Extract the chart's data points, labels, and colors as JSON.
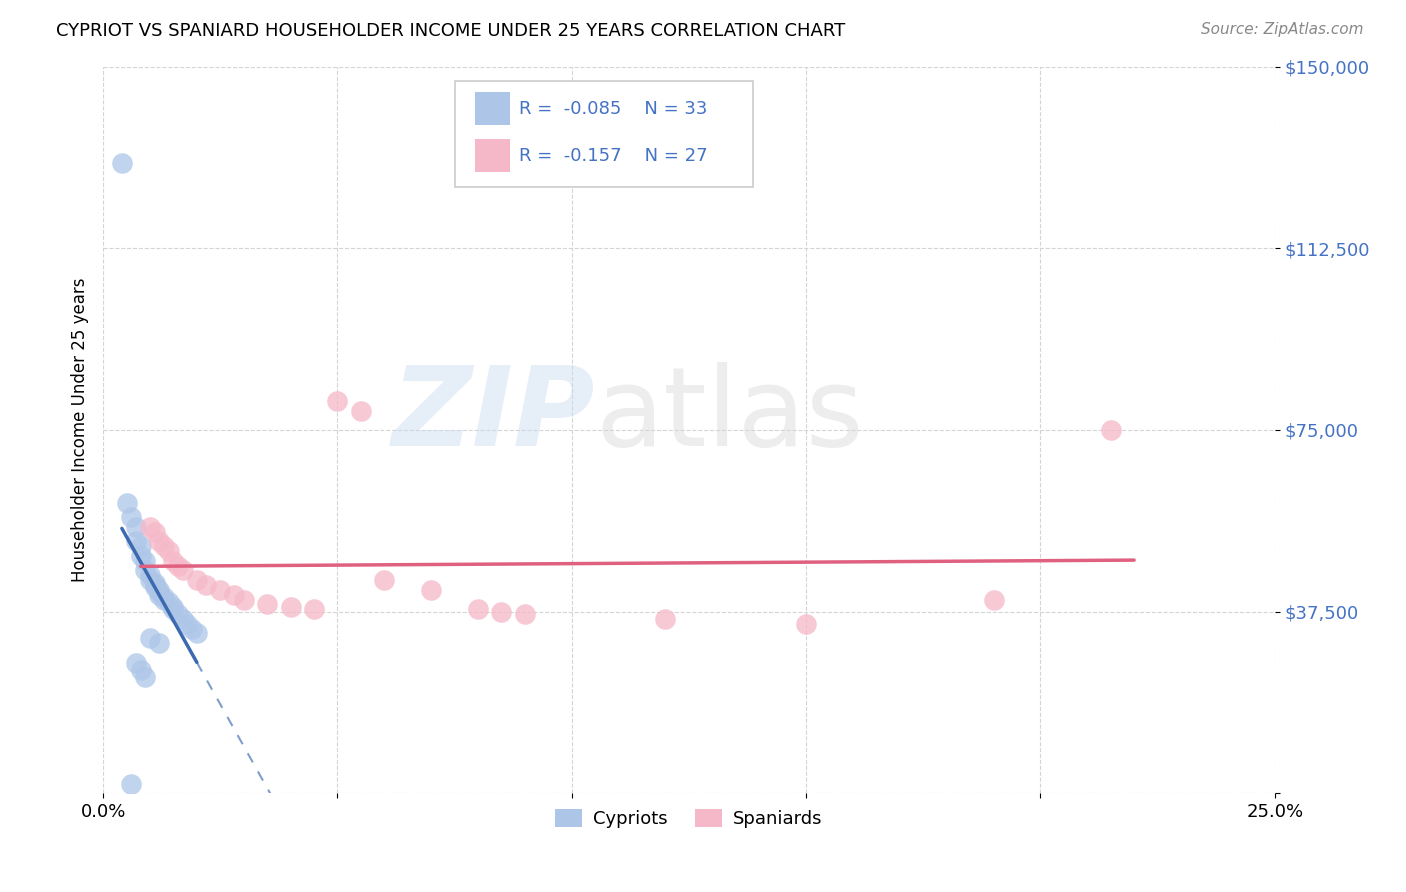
{
  "title": "CYPRIOT VS SPANIARD HOUSEHOLDER INCOME UNDER 25 YEARS CORRELATION CHART",
  "source": "Source: ZipAtlas.com",
  "ylabel": "Householder Income Under 25 years",
  "xlim": [
    0.0,
    0.25
  ],
  "ylim": [
    0,
    150000
  ],
  "yticks": [
    0,
    37500,
    75000,
    112500,
    150000
  ],
  "ytick_labels": [
    "",
    "$37,500",
    "$75,000",
    "$112,500",
    "$150,000"
  ],
  "xtick_positions": [
    0.0,
    0.05,
    0.1,
    0.15,
    0.2,
    0.25
  ],
  "xtick_labels": [
    "0.0%",
    "",
    "",
    "",
    "",
    "25.0%"
  ],
  "background_color": "#ffffff",
  "grid_color": "#d0d0d0",
  "cypriot_color": "#adc6e8",
  "spaniard_color": "#f5b8c8",
  "cypriot_line_color": "#3c6ab0",
  "spaniard_line_color": "#e06080",
  "accent_color": "#4472c4",
  "cypriot_R": -0.085,
  "cypriot_N": 33,
  "spaniard_R": -0.157,
  "spaniard_N": 27,
  "legend_label_1": "Cypriots",
  "legend_label_2": "Spaniards",
  "cypriot_x": [
    0.004,
    0.005,
    0.006,
    0.007,
    0.007,
    0.008,
    0.008,
    0.009,
    0.009,
    0.01,
    0.01,
    0.011,
    0.011,
    0.011,
    0.012,
    0.012,
    0.012,
    0.013,
    0.013,
    0.014,
    0.015,
    0.015,
    0.016,
    0.017,
    0.018,
    0.019,
    0.02,
    0.007,
    0.008,
    0.009,
    0.01,
    0.012,
    0.006
  ],
  "cypriot_y": [
    130000,
    60000,
    57000,
    55000,
    52000,
    51000,
    49000,
    48000,
    46000,
    45000,
    44000,
    43500,
    43000,
    42500,
    42000,
    41500,
    41000,
    40500,
    40000,
    39500,
    38500,
    38000,
    37000,
    36000,
    35000,
    34000,
    33000,
    27000,
    25500,
    24000,
    32000,
    31000,
    2000
  ],
  "spaniard_x": [
    0.01,
    0.011,
    0.012,
    0.013,
    0.014,
    0.015,
    0.016,
    0.017,
    0.02,
    0.022,
    0.025,
    0.028,
    0.03,
    0.035,
    0.04,
    0.045,
    0.05,
    0.055,
    0.06,
    0.07,
    0.08,
    0.085,
    0.09,
    0.12,
    0.15,
    0.19,
    0.215
  ],
  "spaniard_y": [
    55000,
    54000,
    52000,
    51000,
    50000,
    48000,
    47000,
    46000,
    44000,
    43000,
    42000,
    41000,
    40000,
    39000,
    38500,
    38000,
    81000,
    79000,
    44000,
    42000,
    38000,
    37500,
    37000,
    36000,
    35000,
    40000,
    75000
  ]
}
